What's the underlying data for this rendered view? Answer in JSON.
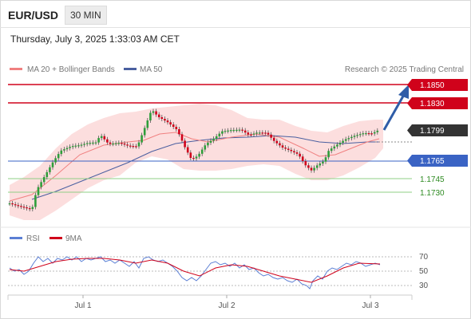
{
  "header": {
    "pair": "EUR/USD",
    "timeframe": "30 MIN",
    "datetime": "Thursday, July 3, 2025 1:33:03 AM CET"
  },
  "legend": {
    "ma20": "MA 20 + Bollinger Bands",
    "ma50": "MA 50",
    "credit": "Research © 2025 Trading Central"
  },
  "levels": {
    "r2": "1.1850",
    "r1": "1.1830",
    "last": "1.1799",
    "s1": "1.1765",
    "s2": "1.1745",
    "s3": "1.1730"
  },
  "rsi_legend": {
    "rsi": "RSI",
    "ma": "9MA"
  },
  "rsi_axis": [
    "70",
    "50",
    "30"
  ],
  "x_axis": [
    "Jul 1",
    "Jul 2",
    "Jul 3"
  ],
  "colors": {
    "resistance": "#d0021b",
    "support_blue": "#3a63c4",
    "support_green": "#2e8b22",
    "candle_up": "#2e9e3a",
    "candle_down": "#d0021b",
    "ma50": "#4a5fa0",
    "ma20": "#f08080",
    "bands": "#fcdede",
    "arrow": "#2f5da8",
    "rsi": "#5b7fd4",
    "rsi_ma": "#d0021b"
  }
}
